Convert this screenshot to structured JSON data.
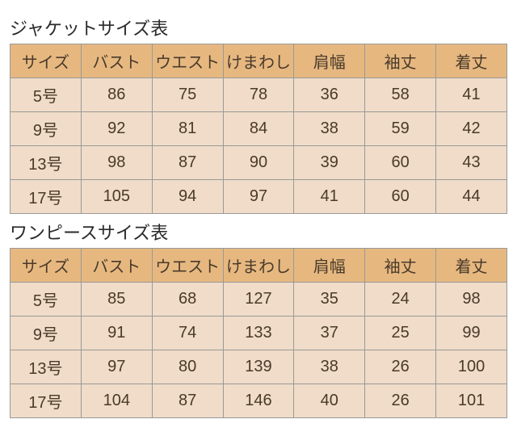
{
  "tables": [
    {
      "title": "ジャケットサイズ表",
      "columns": [
        "サイズ",
        "バスト",
        "ウエスト",
        "けまわし",
        "肩幅",
        "袖丈",
        "着丈"
      ],
      "rows": [
        [
          "5号",
          "86",
          "75",
          "78",
          "36",
          "58",
          "41"
        ],
        [
          "9号",
          "92",
          "81",
          "84",
          "38",
          "59",
          "42"
        ],
        [
          "13号",
          "98",
          "87",
          "90",
          "39",
          "60",
          "43"
        ],
        [
          "17号",
          "105",
          "94",
          "97",
          "41",
          "60",
          "44"
        ]
      ]
    },
    {
      "title": "ワンピースサイズ表",
      "columns": [
        "サイズ",
        "バスト",
        "ウエスト",
        "けまわし",
        "肩幅",
        "袖丈",
        "着丈"
      ],
      "rows": [
        [
          "5号",
          "85",
          "68",
          "127",
          "35",
          "24",
          "98"
        ],
        [
          "9号",
          "91",
          "74",
          "133",
          "37",
          "25",
          "99"
        ],
        [
          "13号",
          "97",
          "80",
          "139",
          "38",
          "26",
          "100"
        ],
        [
          "17号",
          "104",
          "87",
          "146",
          "40",
          "26",
          "101"
        ]
      ]
    }
  ],
  "style": {
    "header_bg": "#e6b880",
    "cell_bg": "#f0dcc8",
    "border_color": "#999999",
    "title_color": "#2a2a2a",
    "cell_text_color": "#4a3a2a",
    "title_fontsize": 22,
    "cell_fontsize": 20
  }
}
